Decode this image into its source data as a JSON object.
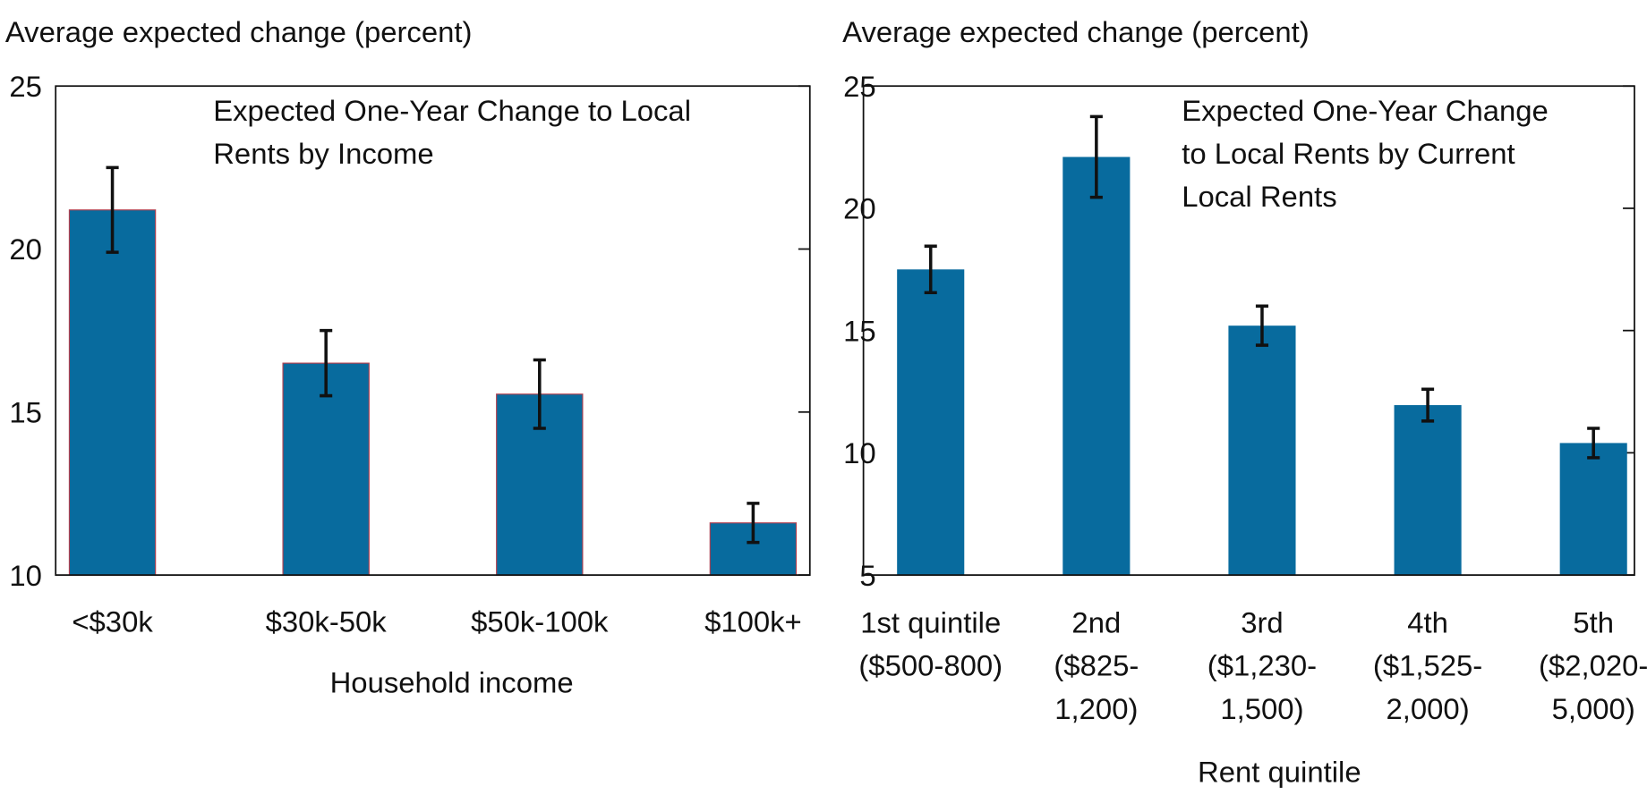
{
  "chart_data": [
    {
      "type": "bar",
      "y_label": "Average expected change (percent)",
      "title": "Expected One-Year Change to Local\nRents by Income",
      "x_label": "Household income",
      "categories": [
        "<$30k",
        "$30k-50k",
        "$50k-100k",
        "$100k+"
      ],
      "values": [
        21.2,
        16.5,
        15.55,
        11.6
      ],
      "errors": [
        1.3,
        1.0,
        1.05,
        0.6
      ],
      "color": "#086b9e",
      "ylim": [
        10,
        25
      ],
      "yticks": [
        10,
        15,
        20,
        25
      ]
    },
    {
      "type": "bar",
      "y_label": "Average expected change (percent)",
      "title": "Expected One-Year Change\nto Local Rents by Current\nLocal Rents",
      "x_label": "Rent quintile",
      "categories": [
        "1st quintile\n($500-800)",
        "2nd\n($825-\n1,200)",
        "3rd\n($1,230-\n1,500)",
        "4th\n($1,525-\n2,000)",
        "5th\n($2,020-\n5,000)"
      ],
      "values": [
        17.5,
        22.1,
        15.2,
        11.95,
        10.4
      ],
      "errors": [
        0.95,
        1.65,
        0.8,
        0.65,
        0.6
      ],
      "color": "#086b9e",
      "ylim": [
        5,
        25
      ],
      "yticks": [
        5,
        10,
        15,
        20,
        25
      ]
    }
  ]
}
